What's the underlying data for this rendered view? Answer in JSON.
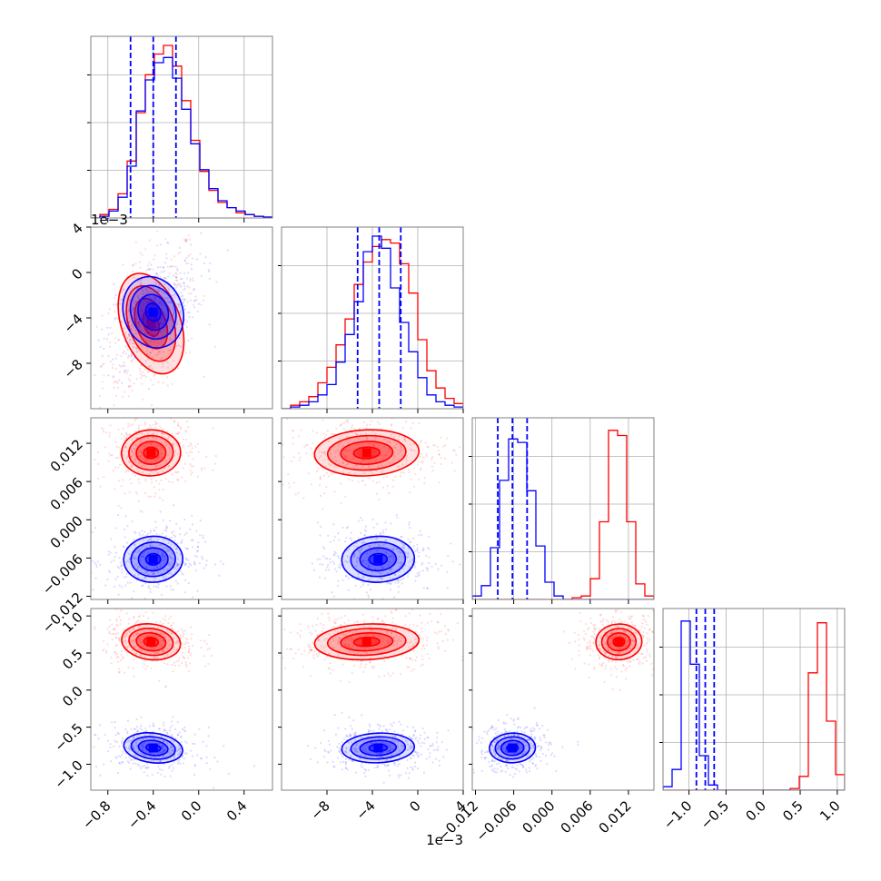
{
  "chart_data": {
    "type": "corner",
    "parameters": [
      {
        "id": "p1",
        "range": [
          -0.95,
          0.65
        ],
        "ticks": [
          -0.8,
          -0.4,
          0.0,
          0.4
        ],
        "tick_labels": [
          "−0.8",
          "−0.4",
          "0.0",
          "0.4"
        ]
      },
      {
        "id": "p2",
        "range": [
          -12.0,
          4.0
        ],
        "ticks": [
          -8,
          -4,
          0,
          4
        ],
        "tick_labels": [
          "−8",
          "−4",
          "0",
          "4"
        ],
        "offset_label": "1e−3"
      },
      {
        "id": "p3",
        "range": [
          -0.0125,
          0.016
        ],
        "ticks": [
          -0.012,
          -0.006,
          0.0,
          0.006,
          0.012
        ],
        "tick_labels": [
          "−0.012",
          "−0.006",
          "0.000",
          "0.006",
          "0.012"
        ]
      },
      {
        "id": "p4",
        "range": [
          -1.35,
          1.1
        ],
        "ticks": [
          -1.0,
          -0.5,
          0.0,
          0.5,
          1.0
        ],
        "tick_labels": [
          "−1.0",
          "−0.5",
          "0.0",
          "0.5",
          "1.0"
        ]
      }
    ],
    "series": [
      {
        "color": "#ff0000",
        "means": [
          -0.42,
          -4.5,
          0.0105,
          0.65
        ],
        "stds": [
          0.13,
          2.3,
          0.0018,
          0.12
        ],
        "histograms": [
          [
            0.0,
            0.02,
            0.05,
            0.14,
            0.33,
            0.61,
            0.83,
            0.95,
            1.0,
            0.88,
            0.68,
            0.45,
            0.27,
            0.16,
            0.09,
            0.06,
            0.03,
            0.02,
            0.01,
            0.005
          ],
          [
            0.0,
            0.02,
            0.04,
            0.07,
            0.15,
            0.24,
            0.37,
            0.52,
            0.72,
            0.85,
            0.94,
            0.98,
            0.96,
            0.84,
            0.67,
            0.4,
            0.22,
            0.12,
            0.06,
            0.03
          ],
          [
            0.0,
            0.0,
            0.0,
            0.0,
            0.0,
            0.0,
            0.0,
            0.0,
            0.0,
            0.0,
            0.0,
            0.01,
            0.02,
            0.12,
            0.45,
            0.98,
            0.95,
            0.45,
            0.09,
            0.02
          ],
          [
            0.0,
            0.0,
            0.0,
            0.0,
            0.0,
            0.0,
            0.0,
            0.0,
            0.0,
            0.0,
            0.0,
            0.0,
            0.0,
            0.0,
            0.01,
            0.08,
            0.68,
            0.97,
            0.4,
            0.09
          ]
        ]
      },
      {
        "color": "#0000ff",
        "means": [
          -0.4,
          -3.5,
          -0.0062,
          -0.78
        ],
        "stds": [
          0.13,
          1.6,
          0.0018,
          0.1
        ],
        "histograms": [
          [
            0.0,
            0.01,
            0.04,
            0.12,
            0.3,
            0.62,
            0.8,
            0.9,
            0.93,
            0.81,
            0.63,
            0.43,
            0.28,
            0.17,
            0.1,
            0.06,
            0.04,
            0.02,
            0.01,
            0.005
          ],
          [
            0.0,
            0.01,
            0.02,
            0.04,
            0.08,
            0.14,
            0.27,
            0.43,
            0.62,
            0.91,
            1.0,
            0.93,
            0.7,
            0.5,
            0.33,
            0.18,
            0.08,
            0.04,
            0.02,
            0.01
          ],
          [
            0.02,
            0.08,
            0.3,
            0.69,
            0.93,
            0.91,
            0.63,
            0.31,
            0.1,
            0.02,
            0.0,
            0.0,
            0.0,
            0.0,
            0.0,
            0.0,
            0.0,
            0.0,
            0.0,
            0.0
          ],
          [
            0.02,
            0.12,
            0.98,
            0.73,
            0.2,
            0.03,
            0.0,
            0.0,
            0.0,
            0.0,
            0.0,
            0.0,
            0.0,
            0.0,
            0.0,
            0.0,
            0.0,
            0.0,
            0.0,
            0.0
          ]
        ]
      }
    ],
    "quantile_lines": {
      "color": "#0000ff",
      "values": [
        [
          -0.6,
          -0.4,
          -0.2
        ],
        [
          -5.3,
          -3.4,
          -1.5
        ],
        [
          -0.0085,
          -0.0062,
          -0.0039
        ],
        [
          -0.9,
          -0.78,
          -0.66
        ]
      ]
    },
    "grid": true
  }
}
